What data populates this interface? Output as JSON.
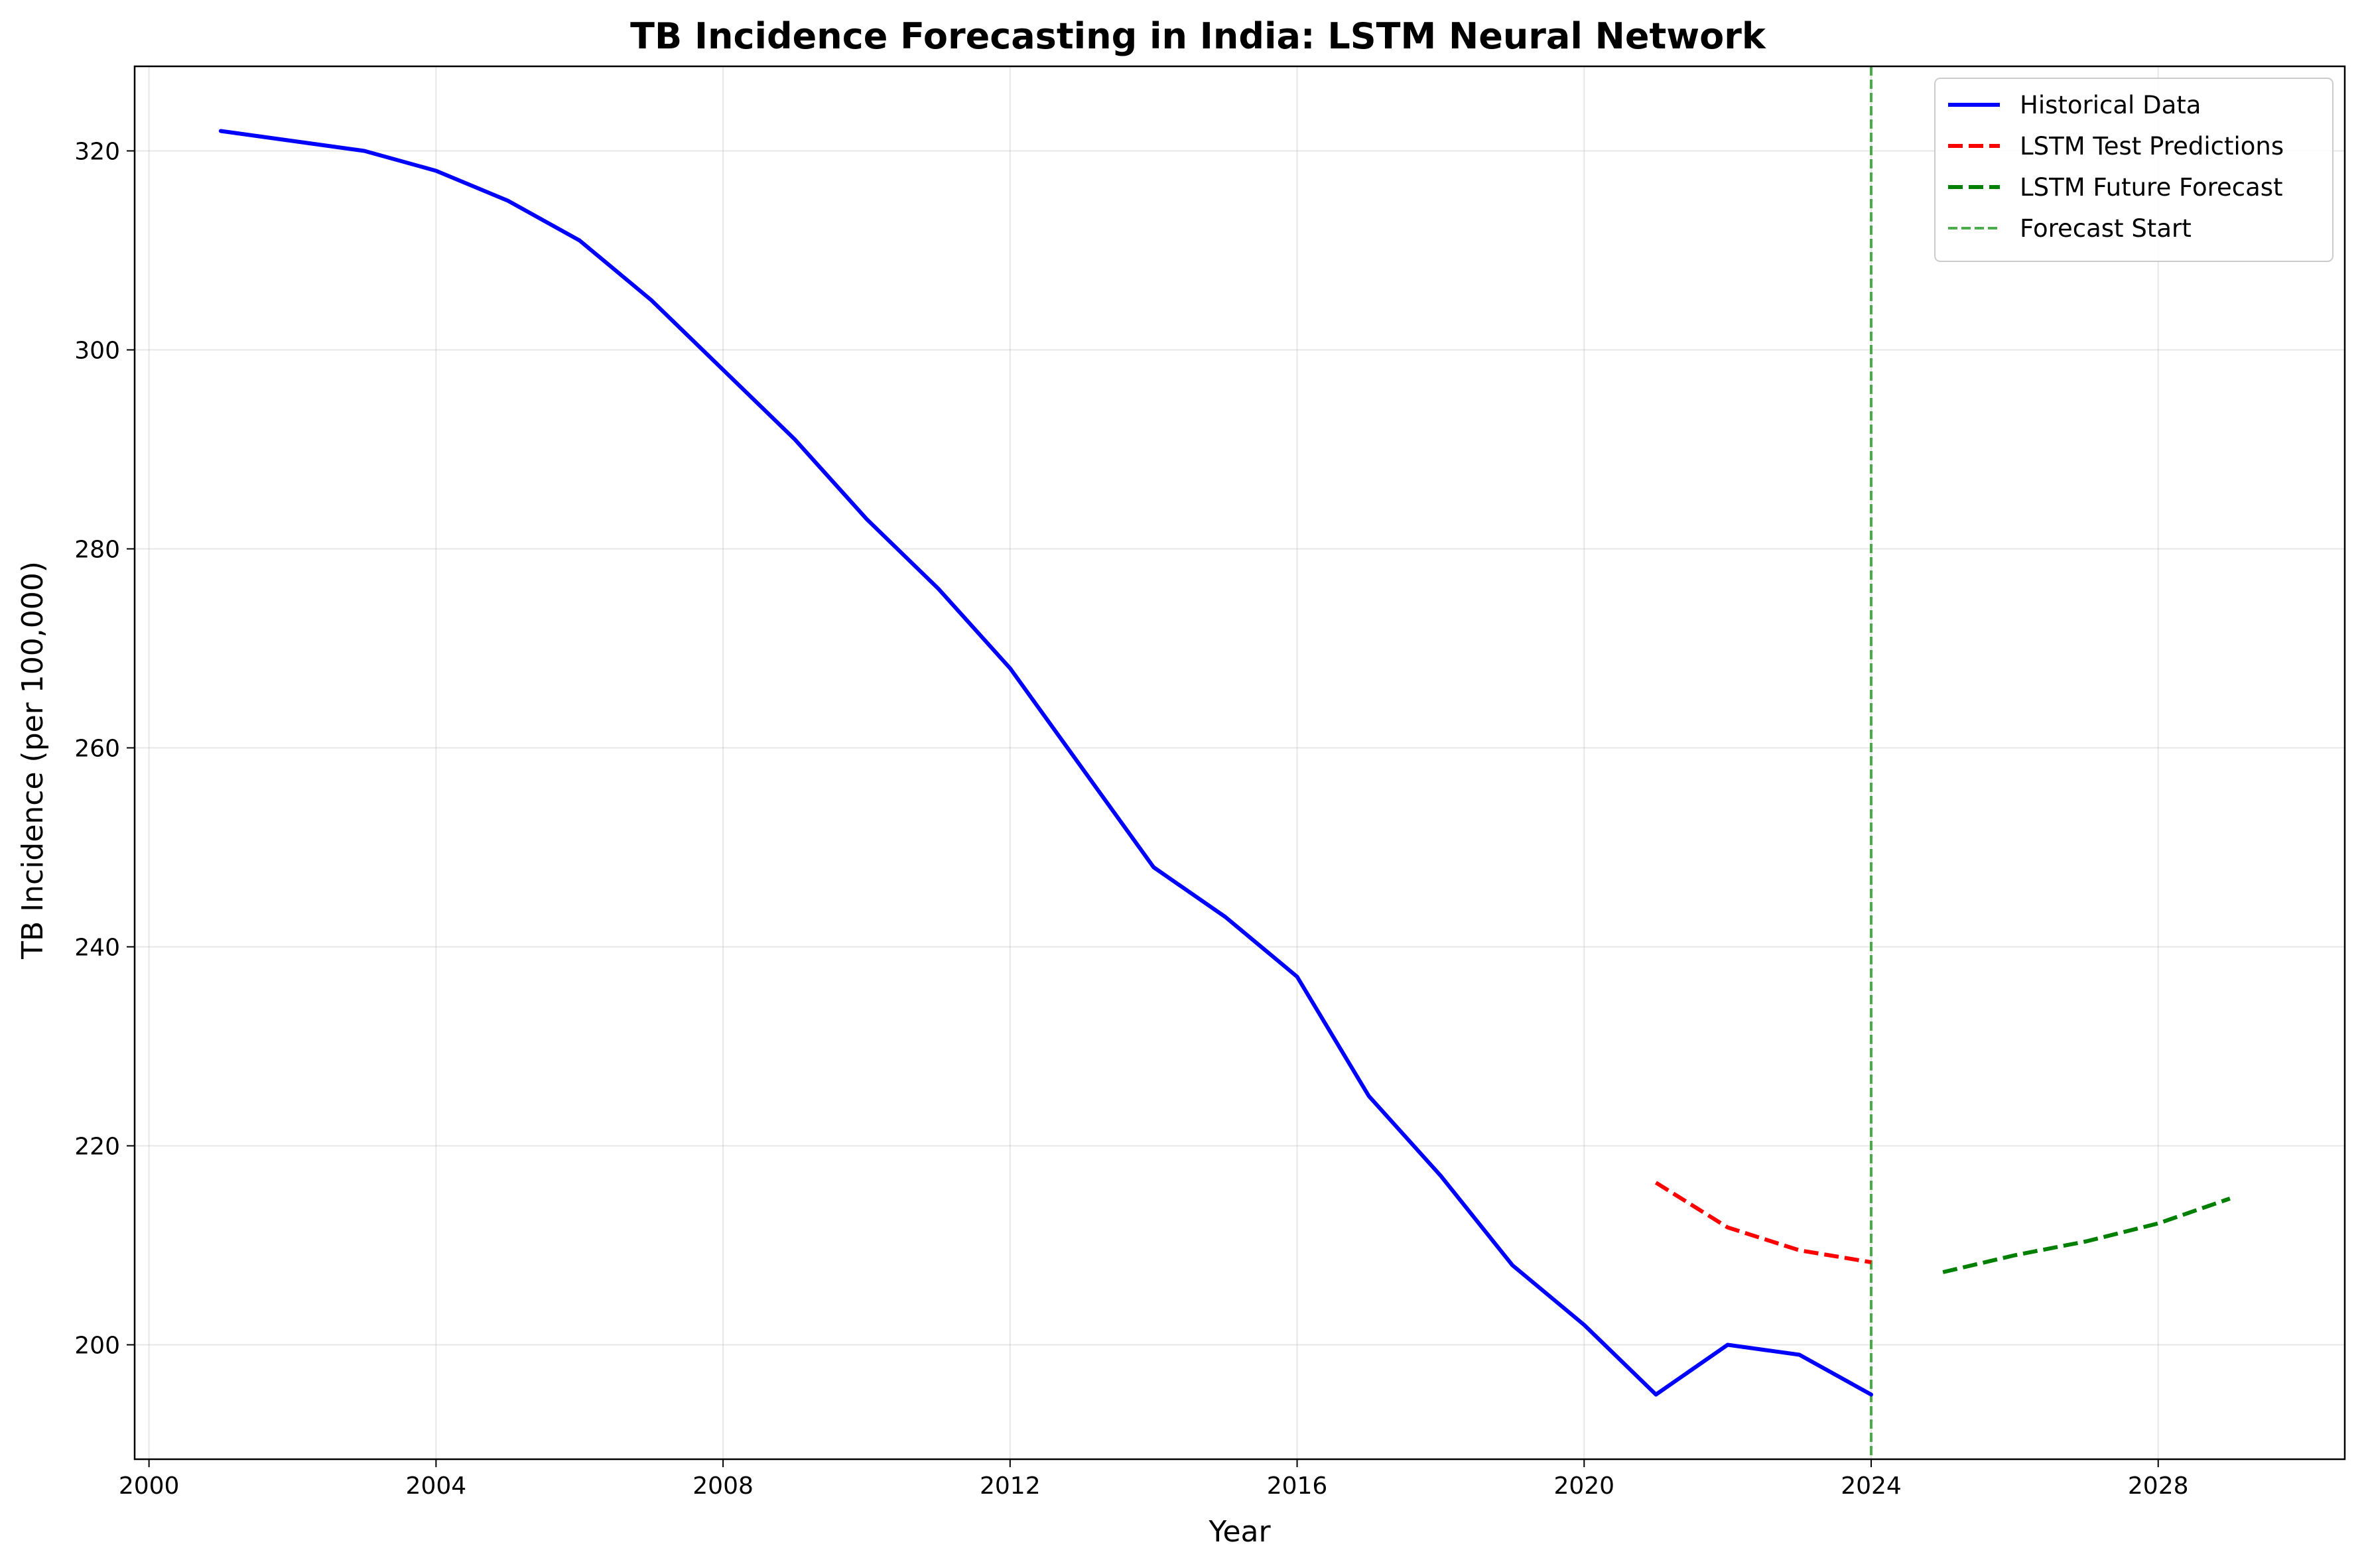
{
  "chart_data": {
    "type": "line",
    "title": "TB Incidence Forecasting in India: LSTM Neural Network",
    "xlabel": "Year",
    "ylabel": "TB Incidence (per 100,000)",
    "xlim": [
      1999.8,
      2030.6
    ],
    "ylim": [
      188.5,
      328.5
    ],
    "xticks": [
      2000,
      2004,
      2008,
      2012,
      2016,
      2020,
      2024,
      2028
    ],
    "yticks": [
      200,
      220,
      240,
      260,
      280,
      300,
      320
    ],
    "grid": true,
    "legend_position": "top-right",
    "series": [
      {
        "name": "Historical Data",
        "color": "#0000ff",
        "style": "solid",
        "x": [
          2001,
          2002,
          2003,
          2004,
          2005,
          2006,
          2007,
          2008,
          2009,
          2010,
          2011,
          2012,
          2013,
          2014,
          2015,
          2016,
          2017,
          2018,
          2019,
          2020,
          2021,
          2022,
          2023,
          2024
        ],
        "y": [
          322,
          321,
          320,
          318,
          315,
          311,
          305,
          298,
          291,
          283,
          276,
          268,
          258,
          248,
          243,
          237,
          225,
          217,
          208,
          202,
          195,
          200,
          199,
          195
        ]
      },
      {
        "name": "LSTM Test Predictions",
        "color": "#ff0000",
        "style": "dashed",
        "x": [
          2021,
          2022,
          2023,
          2024
        ],
        "y": [
          216.3,
          211.8,
          209.5,
          208.3
        ]
      },
      {
        "name": "LSTM Future Forecast",
        "color": "#008000",
        "style": "dashed",
        "x": [
          2025,
          2026,
          2027,
          2028,
          2029
        ],
        "y": [
          207.3,
          209.0,
          210.4,
          212.2,
          214.7
        ]
      }
    ],
    "vlines": [
      {
        "name": "Forecast Start",
        "x": 2024,
        "color": "#2ca02c",
        "style": "dashed"
      }
    ]
  }
}
